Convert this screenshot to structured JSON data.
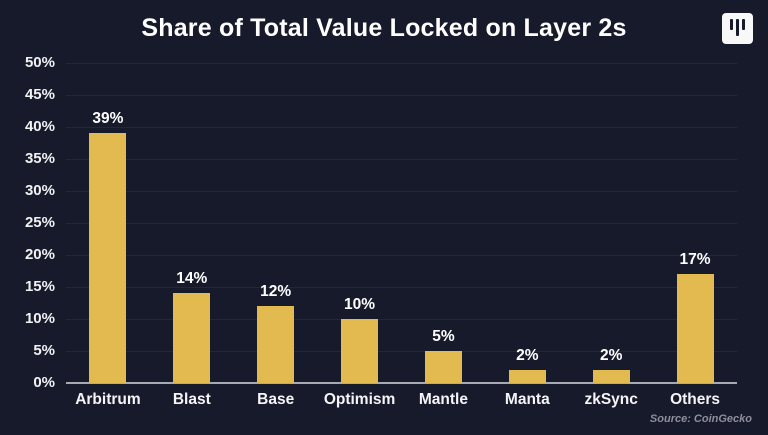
{
  "colors": {
    "background": "#161a2b",
    "bar": "#e3ba50",
    "gridline": "#23273a",
    "axis_line": "#a9a9b3",
    "title_text": "#ffffff",
    "tick_text": "#f2f2f4",
    "source_text": "#8f8f9c",
    "logo_background": "#f8f8f8"
  },
  "logo": {
    "icon": "three-vertical-bars-logo"
  },
  "source": "Source: CoinGecko",
  "chart_data": {
    "type": "bar",
    "title": "Share of Total Value Locked on Layer 2s",
    "categories": [
      "Arbitrum",
      "Blast",
      "Base",
      "Optimism",
      "Mantle",
      "Manta",
      "zkSync",
      "Others"
    ],
    "values": [
      39,
      14,
      12,
      10,
      5,
      2,
      2,
      17
    ],
    "value_labels": [
      "39%",
      "14%",
      "12%",
      "10%",
      "5%",
      "2%",
      "2%",
      "17%"
    ],
    "yticks": [
      "0%",
      "5%",
      "10%",
      "15%",
      "20%",
      "25%",
      "30%",
      "35%",
      "40%",
      "45%",
      "50%"
    ],
    "ytick_values": [
      0,
      5,
      10,
      15,
      20,
      25,
      30,
      35,
      40,
      45,
      50
    ],
    "xlabel": "",
    "ylabel": "",
    "ylim": [
      0,
      50
    ],
    "grid": true,
    "legend": "none",
    "source": "Source: CoinGecko"
  }
}
